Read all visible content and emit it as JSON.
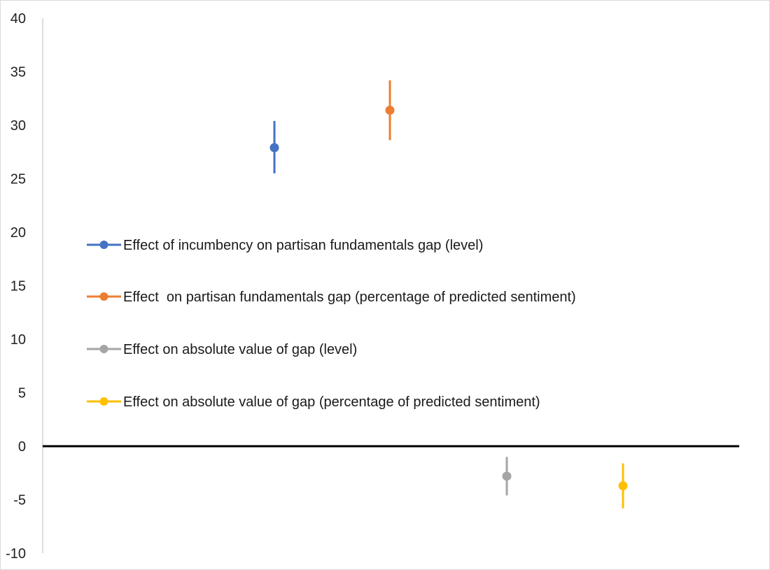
{
  "chart_data": {
    "type": "scatter",
    "title": "",
    "xlabel": "",
    "ylabel": "",
    "ylim": [
      -10,
      40
    ],
    "yticks": [
      40,
      35,
      30,
      25,
      20,
      15,
      10,
      5,
      0,
      -5,
      -10
    ],
    "grid": false,
    "legend_placement": "center-left",
    "series": [
      {
        "name": "Effect of incumbency on partisan fundamentals gap (level)",
        "x": 1,
        "y": 27.9,
        "low": 25.5,
        "high": 30.4,
        "color": "#4472C4"
      },
      {
        "name": "Effect  on partisan fundamentals gap (percentage of predicted sentiment)",
        "x": 2,
        "y": 31.4,
        "low": 28.6,
        "high": 34.2,
        "color": "#ED7D31"
      },
      {
        "name": "Effect on absolute value of gap (level)",
        "x": 3,
        "y": -2.8,
        "low": -4.6,
        "high": -1.0,
        "color": "#A5A5A5"
      },
      {
        "name": "Effect on absolute value of gap (percentage of predicted sentiment)",
        "x": 4,
        "y": -3.7,
        "low": -5.8,
        "high": -1.6,
        "color": "#FFC000"
      }
    ]
  }
}
